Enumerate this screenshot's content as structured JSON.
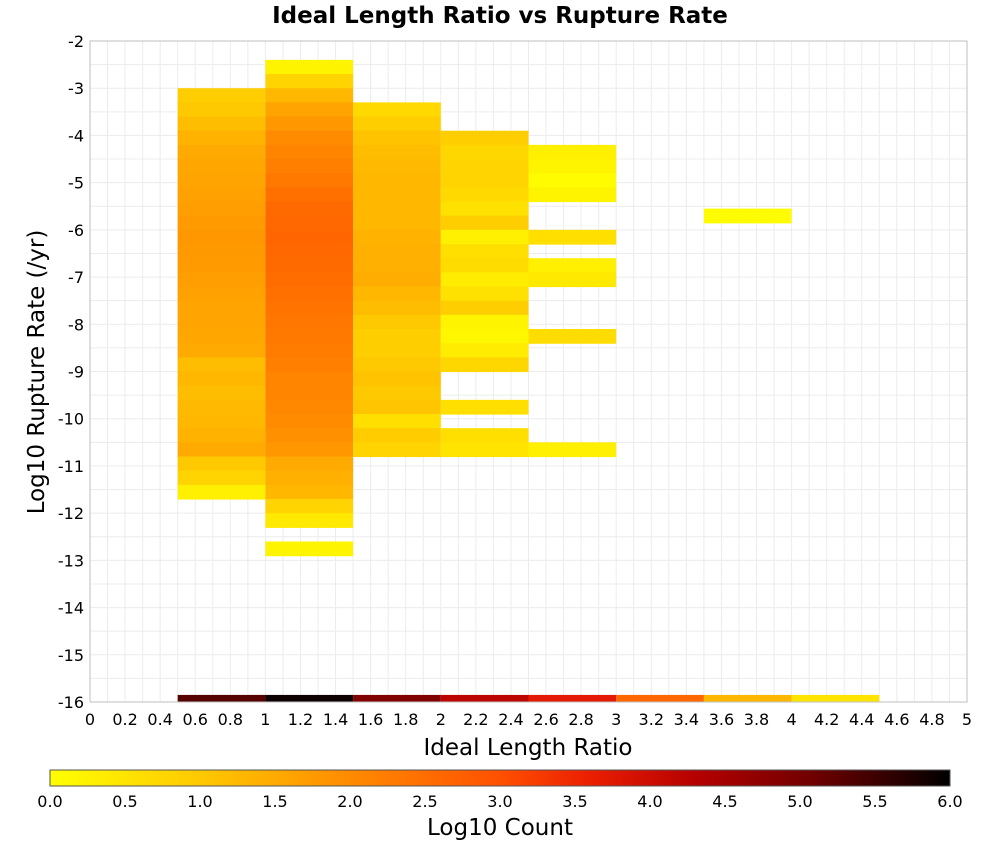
{
  "chart_data": {
    "type": "heatmap",
    "title": "Ideal Length Ratio vs Rupture Rate",
    "xlabel": "Ideal Length Ratio",
    "ylabel": "Log10 Rupture Rate (/yr)",
    "xlim": [
      0,
      5
    ],
    "ylim": [
      -16,
      -2
    ],
    "x_ticks": [
      "0",
      "0.2",
      "0.4",
      "0.6",
      "0.8",
      "1",
      "1.2",
      "1.4",
      "1.6",
      "1.8",
      "2",
      "2.2",
      "2.4",
      "2.6",
      "2.8",
      "3",
      "3.2",
      "3.4",
      "3.6",
      "3.8",
      "4",
      "4.2",
      "4.4",
      "4.6",
      "4.8",
      "5"
    ],
    "y_ticks": [
      "-2",
      "-3",
      "-4",
      "-5",
      "-6",
      "-7",
      "-8",
      "-9",
      "-10",
      "-11",
      "-12",
      "-13",
      "-14",
      "-15",
      "-16"
    ],
    "grid": true,
    "x_bin_width": 0.5,
    "y_bin_height": 0.3,
    "colorbar": {
      "label": "Log10 Count",
      "range": [
        0,
        6
      ],
      "ticks": [
        "0.0",
        "0.5",
        "1.0",
        "1.5",
        "2.0",
        "2.5",
        "3.0",
        "3.5",
        "4.0",
        "4.5",
        "5.0",
        "5.5",
        "6.0"
      ],
      "colormap": [
        [
          0.0,
          "#ffff00"
        ],
        [
          0.17,
          "#ffc800"
        ],
        [
          0.33,
          "#ff8c00"
        ],
        [
          0.5,
          "#ff5000"
        ],
        [
          0.6,
          "#eb1e00"
        ],
        [
          0.72,
          "#b40000"
        ],
        [
          0.85,
          "#6e0000"
        ],
        [
          1.0,
          "#000000"
        ]
      ]
    },
    "columns": [
      {
        "x": 0.75,
        "y_values": [
          -3.15,
          -3.45,
          -3.75,
          -4.05,
          -4.35,
          -4.65,
          -4.95,
          -5.25,
          -5.55,
          -5.85,
          -6.15,
          -6.45,
          -6.75,
          -7.05,
          -7.35,
          -7.65,
          -7.95,
          -8.25,
          -8.55,
          -8.85,
          -9.15,
          -9.45,
          -9.75,
          -10.05,
          -10.35,
          -10.65,
          -10.95,
          -11.25,
          -11.55
        ],
        "log_counts": [
          0.9,
          1.0,
          1.2,
          1.35,
          1.5,
          1.55,
          1.6,
          1.65,
          1.7,
          1.75,
          1.8,
          1.78,
          1.75,
          1.7,
          1.65,
          1.6,
          1.6,
          1.55,
          1.5,
          1.2,
          1.3,
          1.2,
          1.25,
          1.3,
          1.35,
          1.5,
          1.0,
          0.8,
          0.3
        ]
      },
      {
        "x": 1.25,
        "y_values": [
          -2.55,
          -2.85,
          -3.15,
          -3.45,
          -3.75,
          -4.05,
          -4.35,
          -4.65,
          -4.95,
          -5.25,
          -5.55,
          -5.85,
          -6.15,
          -6.45,
          -6.75,
          -7.05,
          -7.35,
          -7.65,
          -7.95,
          -8.25,
          -8.55,
          -8.85,
          -9.15,
          -9.45,
          -9.75,
          -10.05,
          -10.35,
          -10.65,
          -10.95,
          -11.25,
          -11.55,
          -11.85,
          -12.15,
          -12.75
        ],
        "log_counts": [
          0.2,
          0.8,
          1.3,
          1.6,
          1.8,
          2.0,
          2.1,
          2.2,
          2.3,
          2.45,
          2.55,
          2.6,
          2.65,
          2.6,
          2.55,
          2.5,
          2.45,
          2.4,
          2.35,
          2.3,
          2.25,
          2.2,
          2.1,
          2.1,
          2.05,
          2.0,
          1.9,
          1.8,
          1.5,
          1.4,
          1.3,
          0.8,
          0.4,
          0.2
        ]
      },
      {
        "x": 1.75,
        "y_values": [
          -3.45,
          -3.75,
          -4.05,
          -4.35,
          -4.65,
          -4.95,
          -5.25,
          -5.55,
          -5.85,
          -6.15,
          -6.45,
          -6.75,
          -7.05,
          -7.35,
          -7.65,
          -7.95,
          -8.25,
          -8.55,
          -8.85,
          -9.15,
          -9.45,
          -9.75,
          -10.05,
          -10.35,
          -10.65
        ],
        "log_counts": [
          0.7,
          0.9,
          1.1,
          1.2,
          1.25,
          1.3,
          1.3,
          1.3,
          1.3,
          1.35,
          1.4,
          1.4,
          1.45,
          1.3,
          1.2,
          1.0,
          0.9,
          0.9,
          1.0,
          1.1,
          1.0,
          1.05,
          0.6,
          0.95,
          0.8
        ]
      },
      {
        "x": 2.25,
        "y_values": [
          -4.05,
          -4.35,
          -4.65,
          -4.95,
          -5.25,
          -5.55,
          -5.85,
          -6.15,
          -6.45,
          -6.75,
          -7.05,
          -7.35,
          -7.65,
          -7.95,
          -8.25,
          -8.55,
          -8.85,
          -9.75,
          -10.35,
          -10.65
        ],
        "log_counts": [
          0.9,
          0.75,
          0.8,
          0.8,
          0.7,
          0.55,
          0.9,
          0.3,
          0.6,
          0.65,
          0.35,
          0.55,
          0.9,
          0.2,
          0.15,
          0.35,
          0.75,
          0.6,
          0.6,
          0.5
        ]
      },
      {
        "x": 2.75,
        "y_values": [
          -4.35,
          -4.65,
          -4.95,
          -5.25,
          -6.15,
          -6.75,
          -7.05,
          -8.25,
          -10.65
        ],
        "log_counts": [
          0.3,
          0.2,
          0.05,
          0.2,
          0.6,
          0.3,
          0.4,
          0.65,
          0.3
        ]
      },
      {
        "x": 3.75,
        "y_values": [
          -5.7
        ],
        "log_counts": [
          0.05
        ]
      }
    ],
    "bottom_row": {
      "y": -15.95,
      "x_values": [
        0.75,
        1.25,
        1.75,
        2.25,
        2.75,
        3.25,
        3.75,
        4.25
      ],
      "log_counts": [
        5.3,
        5.9,
        4.9,
        4.2,
        3.7,
        2.6,
        1.3,
        0.5
      ]
    }
  }
}
